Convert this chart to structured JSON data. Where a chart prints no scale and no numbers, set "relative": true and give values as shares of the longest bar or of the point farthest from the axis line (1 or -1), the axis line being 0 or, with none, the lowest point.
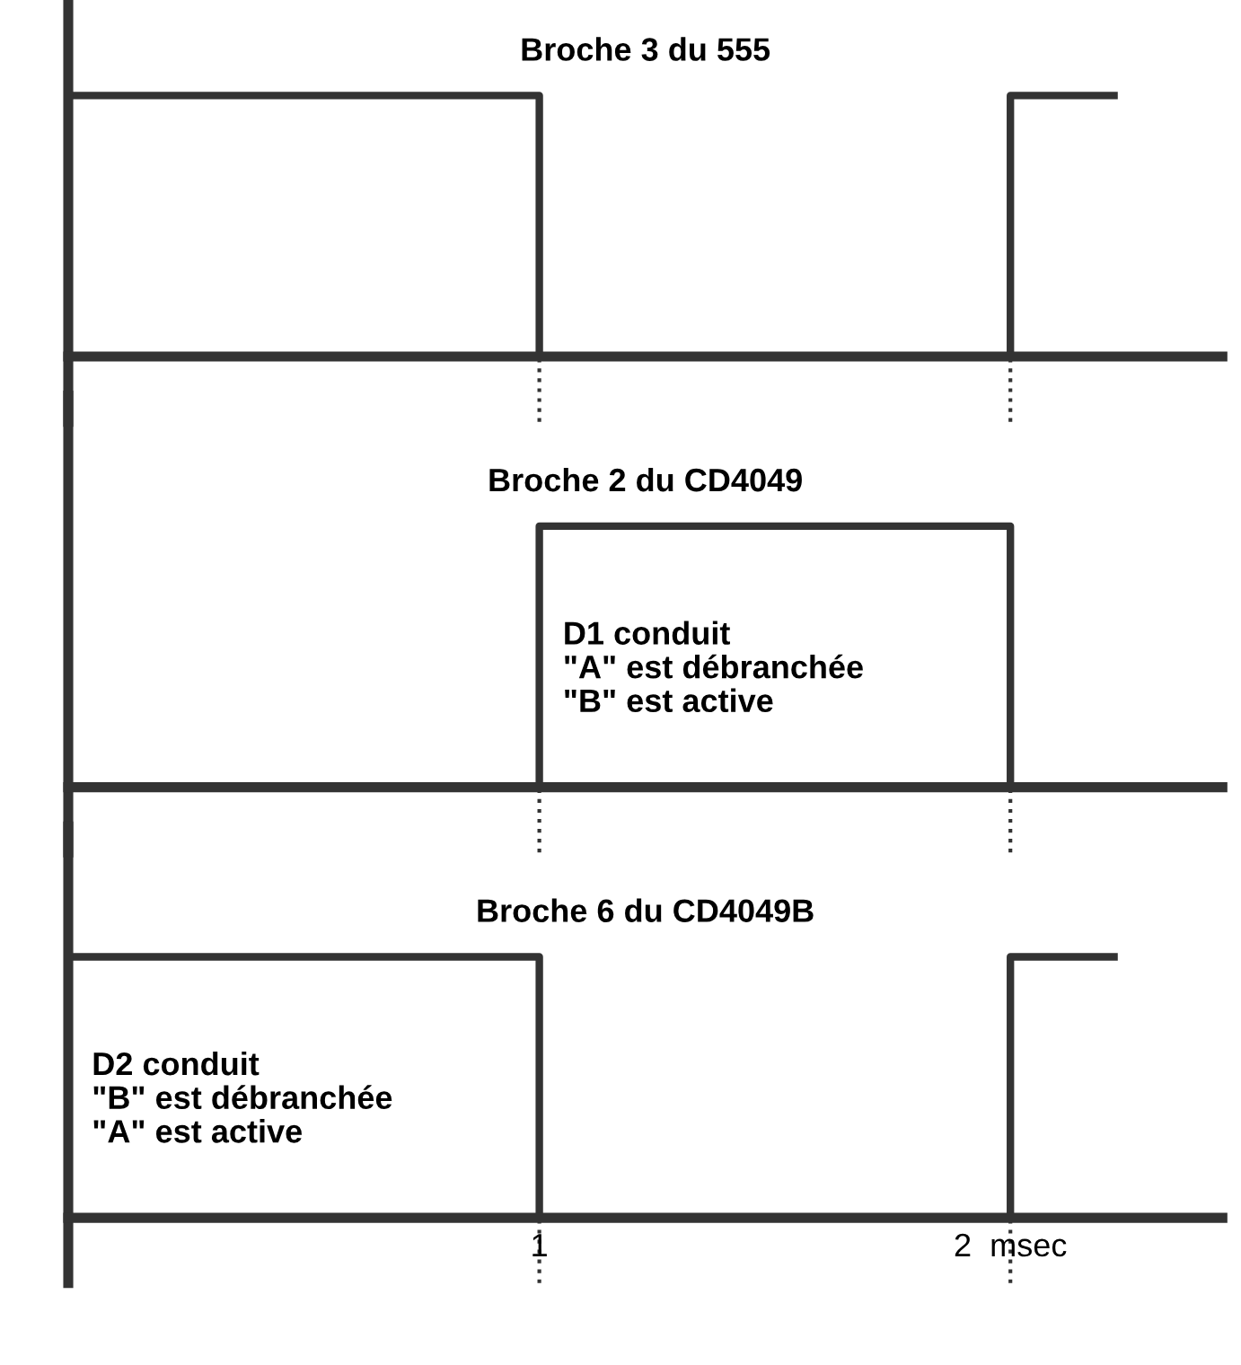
{
  "chart_data": [
    {
      "type": "step",
      "title": "Broche 3 du 555",
      "relative": true,
      "xlim": [
        0,
        2.45
      ],
      "tick_labels": false,
      "grid": false,
      "legend": false,
      "series": [
        {
          "color": "#333333",
          "x": [
            0,
            1,
            2,
            2.22
          ],
          "values": [
            1,
            0,
            1,
            1
          ]
        }
      ],
      "ref_lines": [
        {
          "axis": "x",
          "value": 1,
          "line_style": "dotted",
          "color": "#333333"
        },
        {
          "axis": "x",
          "value": 2,
          "line_style": "dotted",
          "color": "#333333"
        }
      ]
    },
    {
      "type": "step",
      "title": "Broche 2 du CD4049",
      "relative": true,
      "xlim": [
        0,
        2.45
      ],
      "tick_labels": false,
      "grid": false,
      "legend": false,
      "series": [
        {
          "color": "#333333",
          "x": [
            0,
            1,
            2,
            2.22
          ],
          "values": [
            0,
            1,
            0,
            0
          ]
        }
      ],
      "annotations": [
        "D1 conduit",
        "\"A\" est débranchée",
        "\"B\" est active"
      ],
      "ref_lines": [
        {
          "axis": "x",
          "value": 1,
          "line_style": "dotted",
          "color": "#333333"
        },
        {
          "axis": "x",
          "value": 2,
          "line_style": "dotted",
          "color": "#333333"
        }
      ]
    },
    {
      "type": "step",
      "title": "Broche 6 du CD4049B",
      "relative": true,
      "xlim": [
        0,
        2.45
      ],
      "xticks": [
        1,
        {
          "value": 2,
          "label": "2  msec"
        }
      ],
      "tick_labels": "x",
      "grid": false,
      "legend": false,
      "series": [
        {
          "color": "#333333",
          "x": [
            0,
            1,
            2,
            2.22
          ],
          "values": [
            1,
            0,
            1,
            1
          ]
        }
      ],
      "annotations": [
        "D2 conduit",
        "\"B\" est débranchée",
        "\"A\" est active"
      ],
      "ref_lines": [
        {
          "axis": "x",
          "value": 1,
          "line_style": "dotted",
          "color": "#333333"
        },
        {
          "axis": "x",
          "value": 2,
          "line_style": "dotted",
          "color": "#333333"
        }
      ]
    }
  ]
}
